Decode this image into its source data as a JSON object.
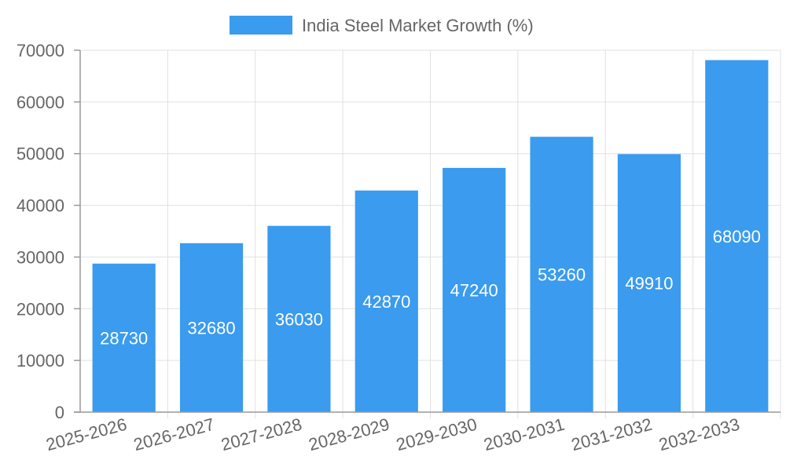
{
  "chart_data": {
    "type": "bar",
    "title": "",
    "xlabel": "",
    "ylabel": "",
    "categories": [
      "2025-2026",
      "2026-2027",
      "2027-2028",
      "2028-2029",
      "2029-2030",
      "2030-2031",
      "2031-2032",
      "2032-2033"
    ],
    "series": [
      {
        "name": "India Steel Market Growth (%)",
        "values": [
          28730,
          32680,
          36030,
          42870,
          47240,
          53260,
          49910,
          68090
        ]
      }
    ],
    "ylim": [
      0,
      70000
    ],
    "yticks": [
      0,
      10000,
      20000,
      30000,
      40000,
      50000,
      60000,
      70000
    ],
    "legend_position": "top-center",
    "grid": true,
    "data_labels": true
  },
  "colors": {
    "bar": "#3a9bef",
    "grid": "#e0e0e0",
    "axis": "#999999",
    "text": "#666666",
    "label": "#ffffff"
  }
}
